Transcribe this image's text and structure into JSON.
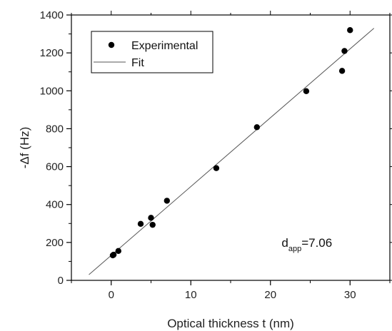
{
  "chart_data": {
    "type": "scatter",
    "title": "",
    "xlabel": "Optical thickness t (nm)",
    "ylabel": "-Δf (Hz)",
    "xlim": [
      -5,
      35
    ],
    "ylim": [
      0,
      1400
    ],
    "x_ticks": [
      0,
      10,
      20,
      30
    ],
    "y_ticks": [
      0,
      200,
      400,
      600,
      800,
      1000,
      1200,
      1400
    ],
    "grid": false,
    "legend_position": "top-left",
    "series": [
      {
        "name": "Experimental",
        "kind": "scatter",
        "color": "#000000",
        "x": [
          0.2,
          0.3,
          0.9,
          3.7,
          5.0,
          5.2,
          7.0,
          13.2,
          18.3,
          24.5,
          29.0,
          29.3,
          30.0
        ],
        "y": [
          132,
          135,
          155,
          298,
          330,
          293,
          420,
          592,
          808,
          998,
          1105,
          1210,
          1320
        ]
      },
      {
        "name": "Fit",
        "kind": "line",
        "color": "#555555",
        "x": [
          -2.8,
          33.0
        ],
        "y": [
          30,
          1330
        ]
      }
    ],
    "annotations": [
      {
        "text": "d",
        "subscript": "app",
        "suffix": "=7.06",
        "x": 21.4,
        "y": 200
      }
    ]
  }
}
